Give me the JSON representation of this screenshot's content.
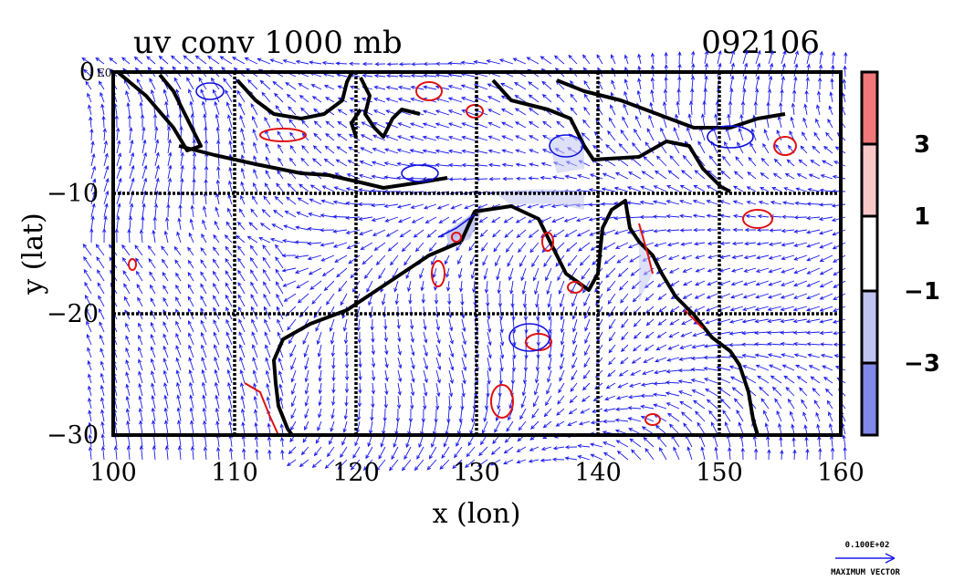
{
  "title": {
    "left": "uv conv 1000 mb",
    "right": "092106"
  },
  "axes": {
    "xlabel": "x (lon)",
    "ylabel": "y (lat)",
    "x_ticks": [
      "100",
      "110",
      "120",
      "130",
      "140",
      "150",
      "160"
    ],
    "y_ticks": [
      "0",
      "−10",
      "−20",
      "−30"
    ],
    "corner_label": "E0",
    "x_range": [
      100,
      160
    ],
    "y_range": [
      -30,
      0
    ]
  },
  "colorbar": {
    "labels": [
      "3",
      "1",
      "−1",
      "−3"
    ],
    "colors": [
      "#f07878",
      "#f8c8c8",
      "#ffffff",
      "#c0c4f0",
      "#8088e8"
    ]
  },
  "colors": {
    "vector": "#1a1aee",
    "contour_pos": "#e01010",
    "contour_neg": "#1010e0",
    "coast": "#000000",
    "fill_pos": "#f8c8c8",
    "fill_neg": "#c0c4f0"
  },
  "reference": {
    "value": "0.100E+02",
    "label": "MAXIMUM VECTOR"
  },
  "map_features": [
    {
      "name": "sumatra",
      "type": "land"
    },
    {
      "name": "java",
      "type": "land"
    },
    {
      "name": "borneo",
      "type": "land"
    },
    {
      "name": "sulawesi",
      "type": "land"
    },
    {
      "name": "new-guinea",
      "type": "land"
    },
    {
      "name": "australia",
      "type": "land"
    }
  ]
}
